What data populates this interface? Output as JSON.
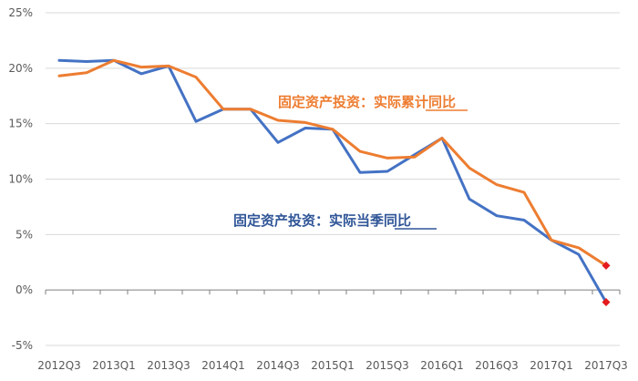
{
  "chart_data": {
    "type": "line",
    "categories": [
      "2012Q3",
      "2012Q4",
      "2013Q1",
      "2013Q2",
      "2013Q3",
      "2013Q4",
      "2014Q1",
      "2014Q2",
      "2014Q3",
      "2014Q4",
      "2015Q1",
      "2015Q2",
      "2015Q3",
      "2015Q4",
      "2016Q1",
      "2016Q2",
      "2016Q3",
      "2016Q4",
      "2017Q1",
      "2017Q2",
      "2017Q3"
    ],
    "x_tick_labels": [
      "2012Q3",
      "2013Q1",
      "2013Q3",
      "2014Q1",
      "2014Q3",
      "2015Q1",
      "2015Q3",
      "2016Q1",
      "2016Q3",
      "2017Q1",
      "2017Q3"
    ],
    "y_tick_labels": [
      "25%",
      "20%",
      "15%",
      "10%",
      "5%",
      "0%",
      "-5%"
    ],
    "y_ticks": [
      25,
      20,
      15,
      10,
      5,
      0,
      -5
    ],
    "ylim": [
      -5,
      25
    ],
    "grid": true,
    "series": [
      {
        "name": "固定资产投资：实际累计同比",
        "color": "#ED7D31",
        "values": [
          19.3,
          19.6,
          20.7,
          20.1,
          20.2,
          19.2,
          16.3,
          16.3,
          15.3,
          15.1,
          14.5,
          12.5,
          11.9,
          12.0,
          13.7,
          11.0,
          9.5,
          8.8,
          4.5,
          3.8,
          2.2
        ]
      },
      {
        "name": "固定资产投资：实际当季同比",
        "color": "#4472C4",
        "values": [
          20.7,
          20.6,
          20.7,
          19.5,
          20.2,
          15.2,
          16.3,
          16.3,
          13.3,
          14.6,
          14.5,
          10.6,
          10.7,
          12.2,
          13.7,
          8.2,
          6.7,
          6.3,
          4.5,
          3.2,
          -1.1
        ]
      }
    ],
    "highlight_marker_color": "#E41A1C"
  }
}
